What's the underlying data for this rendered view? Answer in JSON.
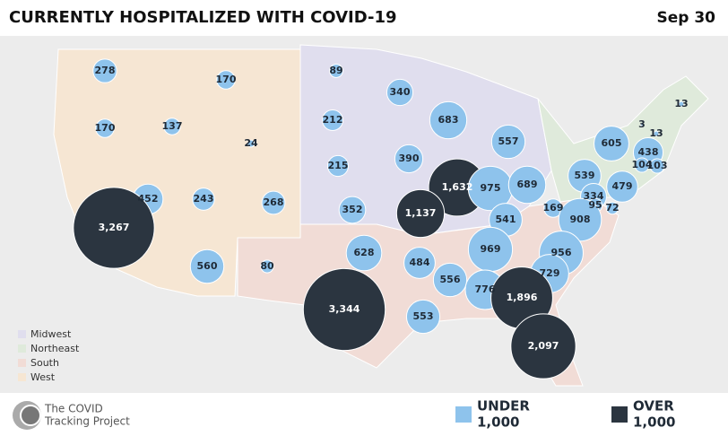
{
  "header": {
    "title": "CURRENTLY HOSPITALIZED WITH COVID-19",
    "date": "Sep 30"
  },
  "regions": [
    "Midwest",
    "Northeast",
    "South",
    "West"
  ],
  "logo": {
    "line1": "The COVID",
    "line2": "Tracking Project"
  },
  "legend": {
    "under": "UNDER",
    "over": "OVER",
    "threshold": {
      "value": 1000,
      "label": "1,000"
    }
  },
  "bubbles": {
    "values": [
      278,
      170,
      89,
      340,
      683,
      13,
      170,
      137,
      24,
      212,
      557,
      605,
      3,
      13,
      438,
      104,
      103,
      215,
      390,
      1632,
      975,
      689,
      539,
      479,
      452,
      243,
      268,
      3267,
      334,
      95,
      72,
      169,
      908,
      352,
      1137,
      541,
      628,
      969,
      956,
      484,
      729,
      560,
      80,
      556,
      776,
      1896,
      3344,
      553,
      2097
    ],
    "value_labels": [
      "278",
      "170",
      "89",
      "340",
      "683",
      "13",
      "170",
      "137",
      "24",
      "212",
      "557",
      "605",
      "3",
      "13",
      "438",
      "104",
      "103",
      "215",
      "390",
      "1,632",
      "975",
      "689",
      "539",
      "479",
      "452",
      "243",
      "268",
      "3,267",
      "334",
      "95",
      "72",
      "169",
      "908",
      "352",
      "1,137",
      "541",
      "628",
      "969",
      "956",
      "484",
      "729",
      "560",
      "80",
      "556",
      "776",
      "1,896",
      "3,344",
      "553",
      "2,097"
    ]
  }
}
